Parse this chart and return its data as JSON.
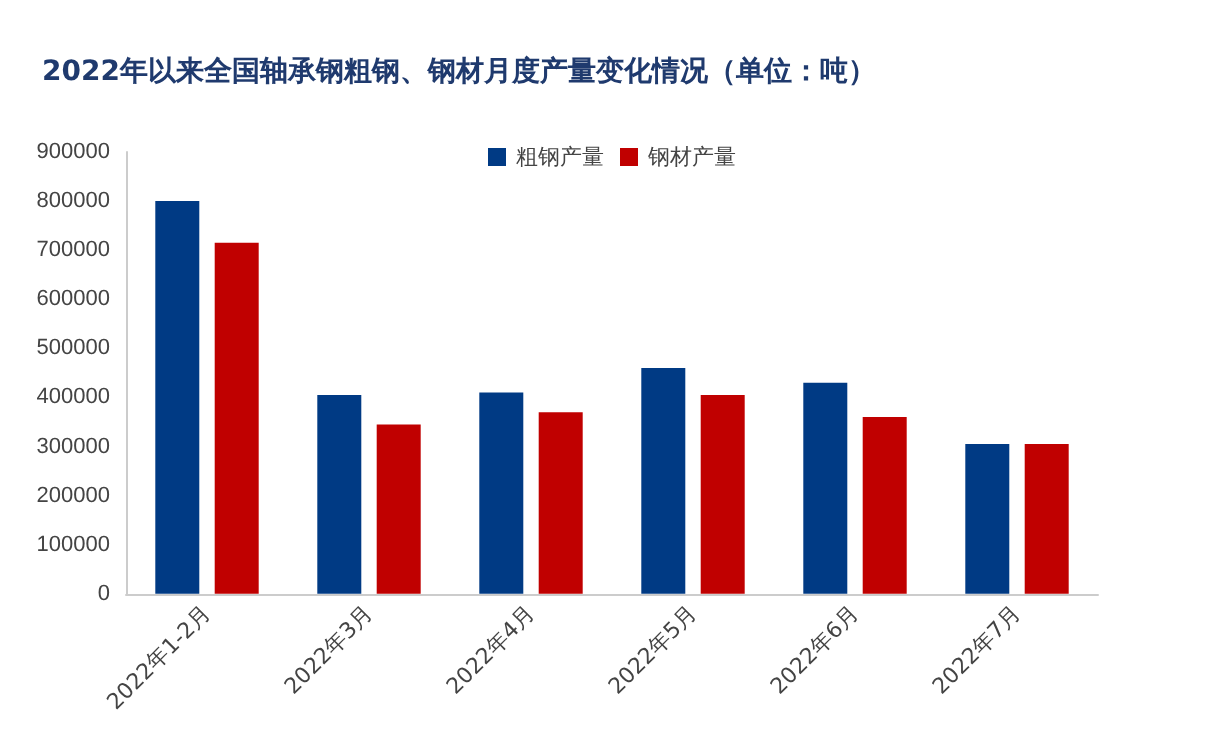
{
  "chart_data": {
    "type": "bar",
    "title": "2022年以来全国轴承钢粗钢、钢材月度产量变化情况（单位：吨）",
    "categories": [
      "2022年1-2月",
      "2022年3月",
      "2022年4月",
      "2022年5月",
      "2022年6月",
      "2022年7月"
    ],
    "series": [
      {
        "name": "粗钢产量",
        "color": "#003A84",
        "values": [
          800000,
          405000,
          410000,
          460000,
          430000,
          305000
        ]
      },
      {
        "name": "钢材产量",
        "color": "#C00000",
        "values": [
          715000,
          345000,
          370000,
          405000,
          360000,
          305000
        ]
      }
    ],
    "ylim": [
      0,
      900000
    ],
    "yticks": [
      0,
      100000,
      200000,
      300000,
      400000,
      500000,
      600000,
      700000,
      800000,
      900000
    ],
    "grid": false,
    "legend": "top"
  }
}
